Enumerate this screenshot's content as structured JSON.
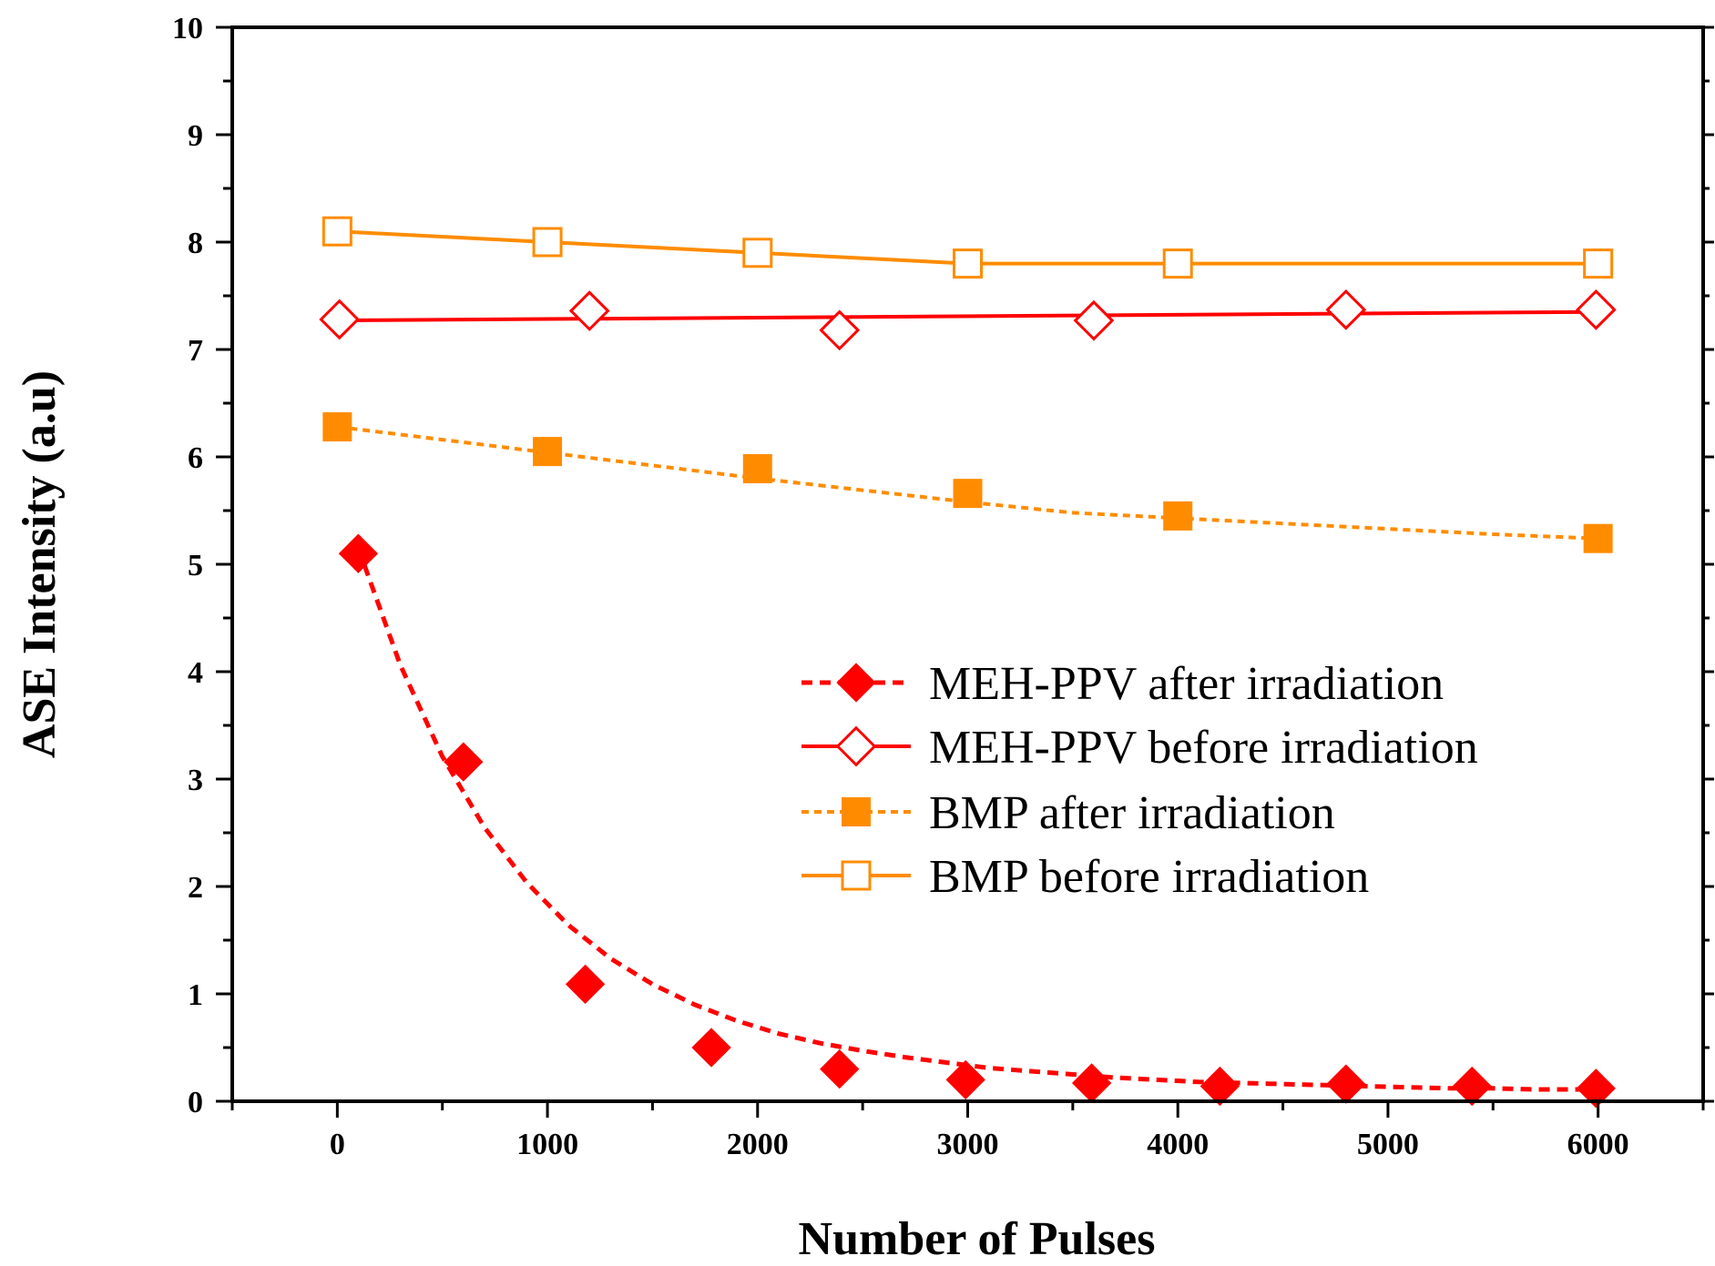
{
  "chart_data": {
    "type": "line",
    "title": "",
    "xlabel": "Number of Pulses",
    "ylabel": "ASE Intensity (a.u)",
    "xlim": [
      -500,
      6500
    ],
    "ylim": [
      0,
      10
    ],
    "xticks": [
      0,
      1000,
      2000,
      3000,
      4000,
      5000,
      6000
    ],
    "xtick_labels": [
      "0",
      "1000",
      "2000",
      "3000",
      "4000",
      "5000",
      "6000"
    ],
    "yticks": [
      0,
      1,
      2,
      3,
      4,
      5,
      6,
      7,
      8,
      9,
      10
    ],
    "ytick_labels": [
      "0",
      "1",
      "2",
      "3",
      "4",
      "5",
      "6",
      "7",
      "8",
      "9",
      "10"
    ],
    "grid": false,
    "legend_position": "center-right",
    "series": [
      {
        "name": "MEH-PPV after irradiation",
        "color": "#ff0000",
        "marker": "diamond-filled",
        "line": "dashed",
        "x": [
          100,
          600,
          1180,
          1780,
          2390,
          2990,
          3590,
          4200,
          4800,
          5400,
          5990
        ],
        "y": [
          5.1,
          3.16,
          1.09,
          0.5,
          0.3,
          0.2,
          0.17,
          0.14,
          0.16,
          0.14,
          0.12
        ],
        "fit_x": [
          100,
          300,
          500,
          700,
          900,
          1100,
          1300,
          1500,
          1700,
          1900,
          2100,
          2300,
          2500,
          2700,
          2900,
          3100,
          3300,
          3500,
          3700,
          3900,
          4100,
          4300,
          4500,
          4700,
          4900,
          5100,
          5300,
          5500,
          5700,
          5900,
          6000
        ],
        "fit_y": [
          5.15,
          4.06,
          3.21,
          2.55,
          2.04,
          1.64,
          1.33,
          1.09,
          0.9,
          0.75,
          0.63,
          0.54,
          0.47,
          0.41,
          0.36,
          0.31,
          0.28,
          0.25,
          0.22,
          0.2,
          0.18,
          0.17,
          0.16,
          0.15,
          0.14,
          0.13,
          0.12,
          0.12,
          0.11,
          0.11,
          0.11
        ]
      },
      {
        "name": "MEH-PPV before irradiation",
        "color": "#ff0000",
        "marker": "diamond-open",
        "line": "solid",
        "x": [
          10,
          1200,
          2390,
          3600,
          4800,
          5990
        ],
        "y": [
          7.28,
          7.36,
          7.18,
          7.27,
          7.37,
          7.37
        ],
        "fit_x": [
          10,
          5990
        ],
        "fit_y": [
          7.27,
          7.35
        ]
      },
      {
        "name": "BMP after irradiation",
        "color": "#ff8c00",
        "marker": "square-filled",
        "line": "dashed",
        "x": [
          0,
          1000,
          2000,
          3000,
          4000,
          6000
        ],
        "y": [
          6.28,
          6.05,
          5.89,
          5.66,
          5.45,
          5.24
        ],
        "fit_x": [
          0,
          500,
          1000,
          1500,
          2000,
          2500,
          3000,
          3500,
          4000,
          4500,
          5000,
          5500,
          6000
        ],
        "fit_y": [
          6.28,
          6.16,
          6.04,
          5.92,
          5.8,
          5.69,
          5.58,
          5.48,
          5.43,
          5.38,
          5.33,
          5.28,
          5.24
        ]
      },
      {
        "name": "BMP before irradiation",
        "color": "#ff8c00",
        "marker": "square-open",
        "line": "solid",
        "x": [
          0,
          1000,
          2000,
          3000,
          4000,
          6000
        ],
        "y": [
          8.1,
          8.0,
          7.9,
          7.8,
          7.8,
          7.8
        ],
        "fit_x": [
          0,
          1000,
          2000,
          3000,
          4000,
          6000
        ],
        "fit_y": [
          8.1,
          8.0,
          7.9,
          7.8,
          7.8,
          7.8
        ]
      }
    ]
  }
}
